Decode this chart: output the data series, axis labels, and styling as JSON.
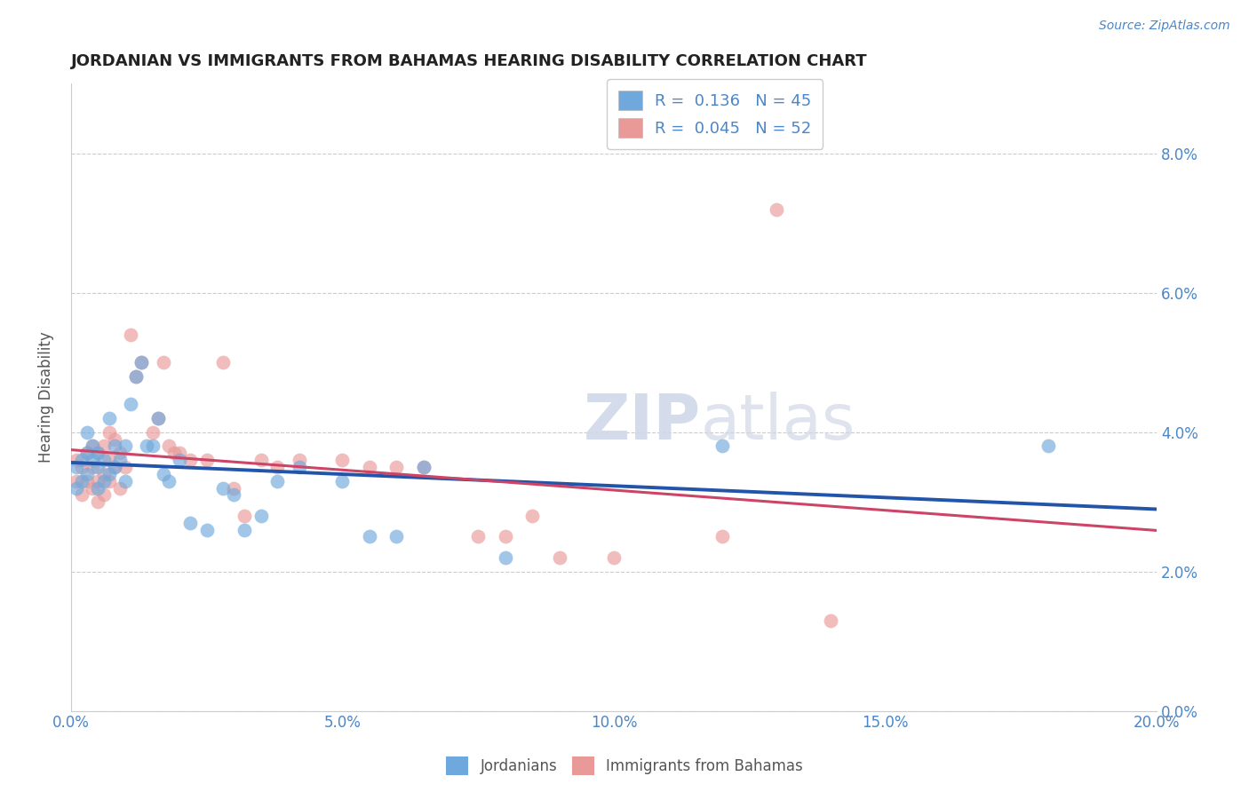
{
  "title": "JORDANIAN VS IMMIGRANTS FROM BAHAMAS HEARING DISABILITY CORRELATION CHART",
  "source_text": "Source: ZipAtlas.com",
  "ylabel": "Hearing Disability",
  "xlim": [
    0.0,
    0.2
  ],
  "ylim": [
    0.0,
    0.09
  ],
  "blue_color": "#6fa8dc",
  "pink_color": "#ea9999",
  "blue_line_color": "#2255aa",
  "pink_line_color": "#cc4466",
  "title_color": "#222222",
  "axis_label_color": "#555555",
  "tick_label_color": "#4a86c8",
  "grid_color": "#cccccc",
  "watermark_text": "ZIPatlas",
  "legend_R_blue": "R =  0.136   N = 45",
  "legend_R_pink": "R =  0.045   N = 52",
  "legend_label_blue": "Jordanians",
  "legend_label_pink": "Immigrants from Bahamas",
  "jordanians_x": [
    0.001,
    0.001,
    0.002,
    0.002,
    0.003,
    0.003,
    0.003,
    0.004,
    0.004,
    0.005,
    0.005,
    0.005,
    0.006,
    0.006,
    0.007,
    0.007,
    0.008,
    0.008,
    0.009,
    0.01,
    0.01,
    0.011,
    0.012,
    0.013,
    0.014,
    0.015,
    0.016,
    0.017,
    0.018,
    0.02,
    0.022,
    0.025,
    0.028,
    0.03,
    0.032,
    0.035,
    0.038,
    0.042,
    0.05,
    0.055,
    0.06,
    0.065,
    0.08,
    0.12,
    0.18
  ],
  "jordanians_y": [
    0.032,
    0.035,
    0.033,
    0.036,
    0.034,
    0.037,
    0.04,
    0.036,
    0.038,
    0.032,
    0.035,
    0.037,
    0.033,
    0.036,
    0.034,
    0.042,
    0.035,
    0.038,
    0.036,
    0.033,
    0.038,
    0.044,
    0.048,
    0.05,
    0.038,
    0.038,
    0.042,
    0.034,
    0.033,
    0.036,
    0.027,
    0.026,
    0.032,
    0.031,
    0.026,
    0.028,
    0.033,
    0.035,
    0.033,
    0.025,
    0.025,
    0.035,
    0.022,
    0.038,
    0.038
  ],
  "bahamas_x": [
    0.001,
    0.001,
    0.002,
    0.002,
    0.003,
    0.003,
    0.004,
    0.004,
    0.004,
    0.005,
    0.005,
    0.005,
    0.006,
    0.006,
    0.006,
    0.007,
    0.007,
    0.007,
    0.008,
    0.008,
    0.009,
    0.009,
    0.01,
    0.011,
    0.012,
    0.013,
    0.015,
    0.016,
    0.017,
    0.018,
    0.019,
    0.02,
    0.022,
    0.025,
    0.028,
    0.03,
    0.032,
    0.035,
    0.038,
    0.042,
    0.05,
    0.055,
    0.06,
    0.065,
    0.075,
    0.08,
    0.085,
    0.09,
    0.1,
    0.12,
    0.14,
    0.13
  ],
  "bahamas_y": [
    0.033,
    0.036,
    0.031,
    0.035,
    0.033,
    0.037,
    0.032,
    0.035,
    0.038,
    0.03,
    0.033,
    0.037,
    0.031,
    0.034,
    0.038,
    0.033,
    0.036,
    0.04,
    0.035,
    0.039,
    0.032,
    0.037,
    0.035,
    0.054,
    0.048,
    0.05,
    0.04,
    0.042,
    0.05,
    0.038,
    0.037,
    0.037,
    0.036,
    0.036,
    0.05,
    0.032,
    0.028,
    0.036,
    0.035,
    0.036,
    0.036,
    0.035,
    0.035,
    0.035,
    0.025,
    0.025,
    0.028,
    0.022,
    0.022,
    0.025,
    0.013,
    0.072
  ]
}
